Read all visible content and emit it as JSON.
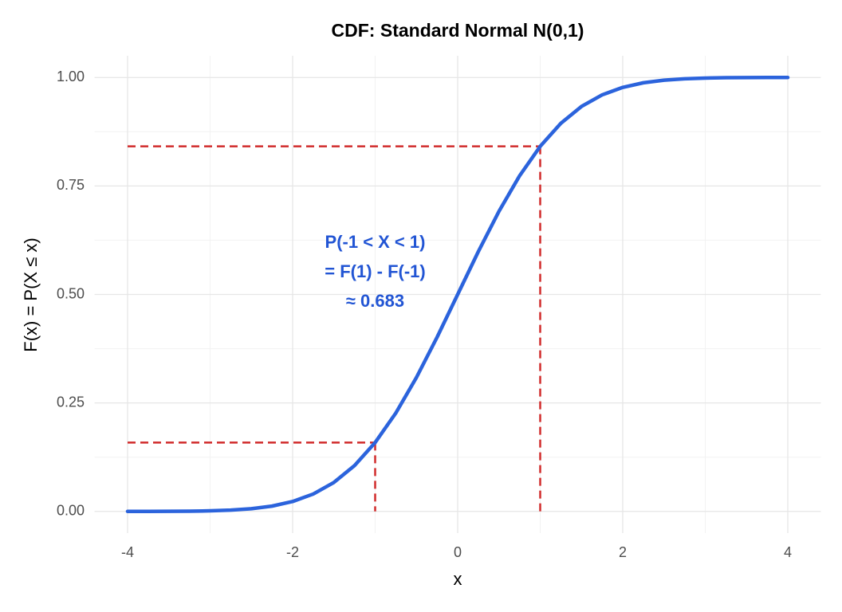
{
  "chart_data": {
    "type": "line",
    "title": "CDF: Standard Normal N(0,1)",
    "xlabel": "x",
    "ylabel": "F(x) = P(X ≤ x)",
    "x": [
      -4,
      -3.75,
      -3.5,
      -3.25,
      -3,
      -2.75,
      -2.5,
      -2.25,
      -2,
      -1.75,
      -1.5,
      -1.25,
      -1,
      -0.75,
      -0.5,
      -0.25,
      0,
      0.25,
      0.5,
      0.75,
      1,
      1.25,
      1.5,
      1.75,
      2,
      2.25,
      2.5,
      2.75,
      3,
      3.25,
      3.5,
      3.75,
      4
    ],
    "series": [
      {
        "color": "#2b63dc",
        "values": [
          0.0,
          0.0001,
          0.0002,
          0.0006,
          0.0013,
          0.003,
          0.0062,
          0.0122,
          0.0228,
          0.0401,
          0.0668,
          0.1056,
          0.1587,
          0.2266,
          0.3085,
          0.4013,
          0.5,
          0.5987,
          0.6915,
          0.7734,
          0.8413,
          0.8944,
          0.9332,
          0.9599,
          0.9772,
          0.9878,
          0.9938,
          0.997,
          0.9987,
          0.9994,
          0.9998,
          0.9999,
          1.0
        ]
      }
    ],
    "reference_lines": [
      {
        "x": -1,
        "y": 0.1587
      },
      {
        "x": 1,
        "y": 0.8413
      }
    ],
    "reference_color": "#d12b2b",
    "annotation": {
      "lines": [
        "P(-1 < X < 1)",
        "= F(1) - F(-1)",
        "≈ 0.683"
      ],
      "x": -1,
      "y": 0.55,
      "color": "#2255d4"
    },
    "xlim": [
      -4.4,
      4.4
    ],
    "ylim": [
      -0.05,
      1.05
    ],
    "xticks": [
      -4,
      -2,
      0,
      2,
      4
    ],
    "yticks": [
      {
        "value": 0,
        "label": "0.00"
      },
      {
        "value": 0.25,
        "label": "0.25"
      },
      {
        "value": 0.5,
        "label": "0.50"
      },
      {
        "value": 0.75,
        "label": "0.75"
      },
      {
        "value": 1,
        "label": "1.00"
      }
    ],
    "xminor": [
      -3,
      -1,
      1,
      3
    ],
    "yminor": [
      0.125,
      0.375,
      0.625,
      0.875
    ],
    "grid": true
  }
}
